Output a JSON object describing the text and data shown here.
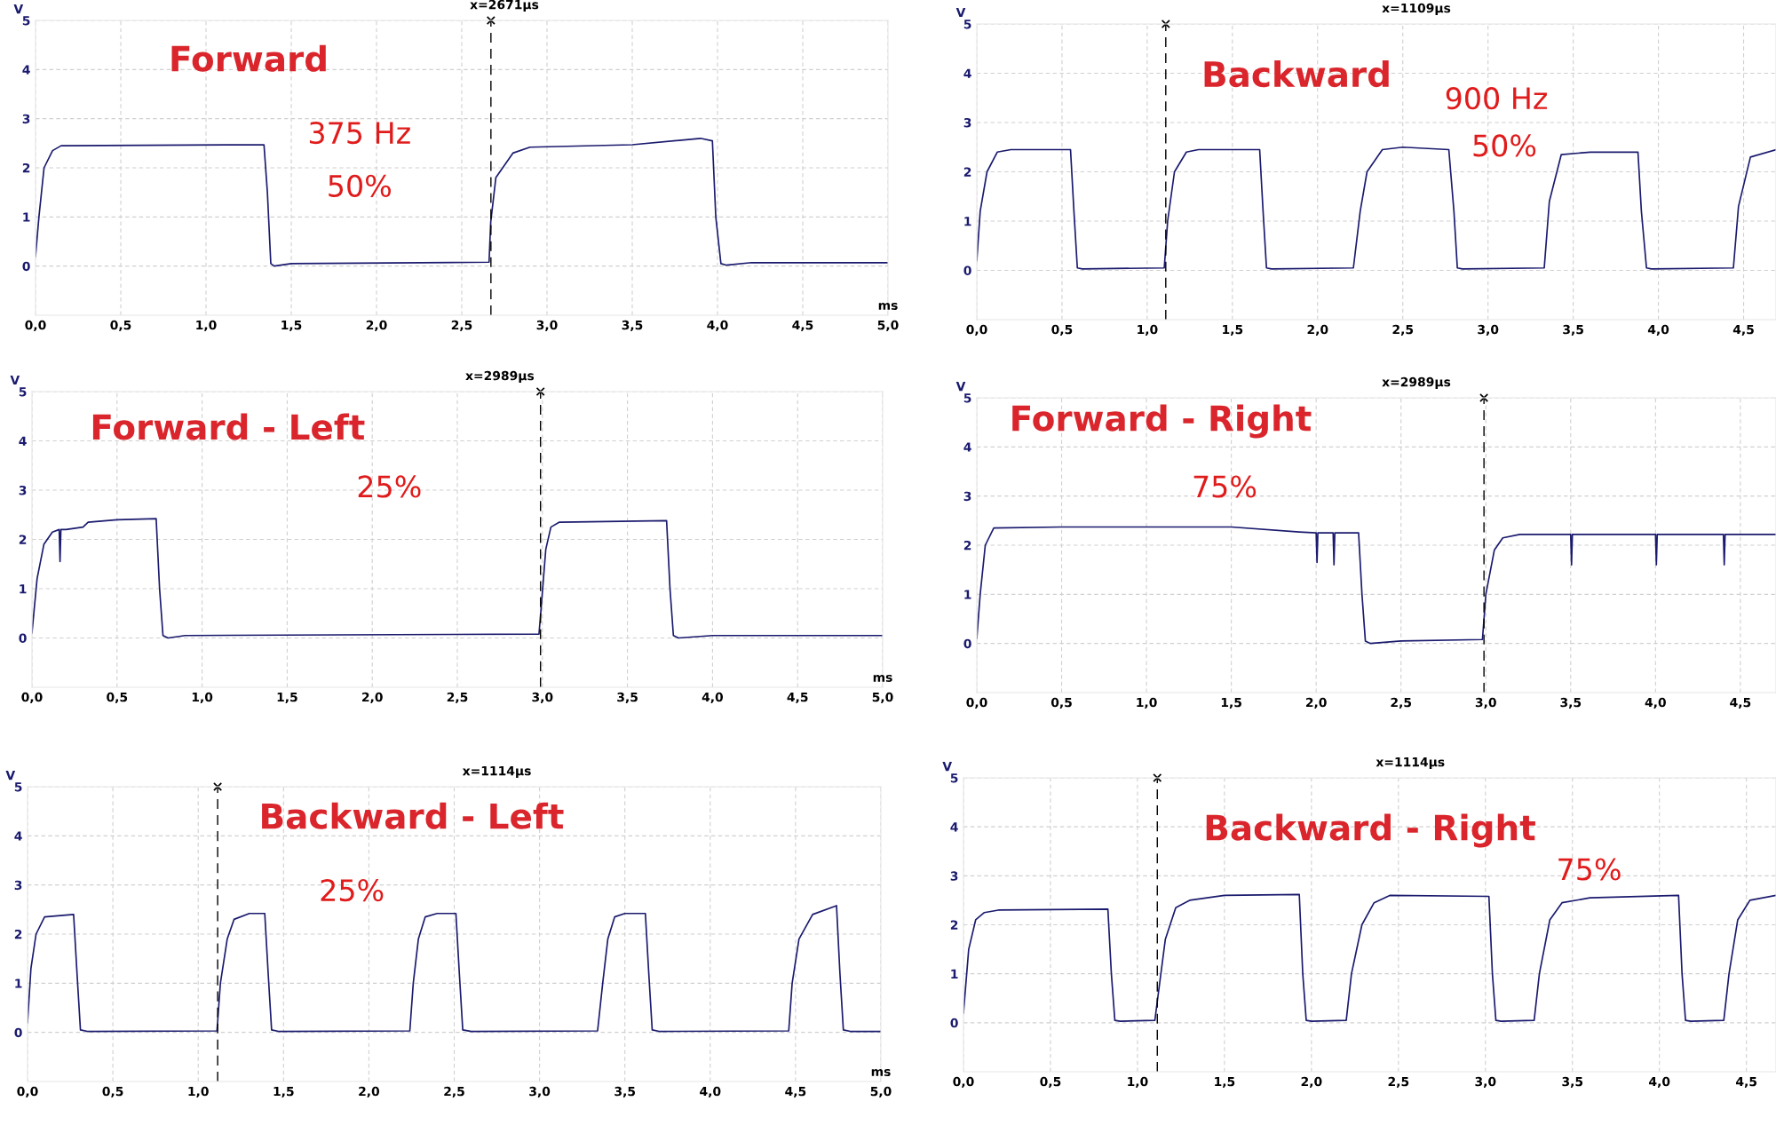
{
  "chart_data": [
    {
      "type": "line",
      "title": "Forward",
      "annotations": [
        "375 Hz",
        "50%"
      ],
      "xlabel": "ms",
      "ylabel": "V",
      "grid": true,
      "xlim": [
        0,
        5
      ],
      "xticks": [
        {
          "value": 0,
          "label": "0,0"
        },
        {
          "value": 0.5,
          "label": "0,5"
        },
        {
          "value": 1,
          "label": "1,0"
        },
        {
          "value": 1.5,
          "label": "1,5"
        },
        {
          "value": 2,
          "label": "2,0"
        },
        {
          "value": 2.5,
          "label": "2,5"
        },
        {
          "value": 3,
          "label": "3,0"
        },
        {
          "value": 3.5,
          "label": "3,5"
        },
        {
          "value": 4,
          "label": "4,0"
        },
        {
          "value": 4.5,
          "label": "4,5"
        },
        {
          "value": 5,
          "label": "5,0"
        }
      ],
      "ylim": [
        -1,
        5
      ],
      "yticks": [
        0,
        1,
        2,
        3,
        4,
        5
      ],
      "ref_lines": [
        {
          "axis": "x",
          "value": 2.671,
          "label": "x=2671µs",
          "line_style": "dashed",
          "color": "#000000"
        }
      ],
      "series": [
        {
          "color": "#1a1a6e",
          "x": [
            0,
            0.02,
            0.05,
            0.1,
            0.15,
            1.34,
            1.36,
            1.38,
            1.4,
            1.5,
            2.66,
            2.67,
            2.7,
            2.8,
            2.9,
            3.5,
            3.9,
            3.97,
            3.99,
            4.02,
            4.05,
            4.2,
            5.0
          ],
          "values": [
            0.2,
            1.0,
            2.0,
            2.35,
            2.45,
            2.47,
            1.5,
            0.05,
            0.0,
            0.05,
            0.08,
            0.9,
            1.8,
            2.3,
            2.42,
            2.47,
            2.6,
            2.55,
            1.0,
            0.05,
            0.02,
            0.07,
            0.07
          ]
        }
      ]
    },
    {
      "type": "line",
      "title": "Backward",
      "annotations": [
        "900 Hz",
        "50%"
      ],
      "ylabel": "V",
      "grid": true,
      "xlim": [
        0,
        4.69
      ],
      "xticks": [
        {
          "value": 0,
          "label": "0,0"
        },
        {
          "value": 0.5,
          "label": "0,5"
        },
        {
          "value": 1,
          "label": "1,0"
        },
        {
          "value": 1.5,
          "label": "1,5"
        },
        {
          "value": 2,
          "label": "2,0"
        },
        {
          "value": 2.5,
          "label": "2,5"
        },
        {
          "value": 3,
          "label": "3,0"
        },
        {
          "value": 3.5,
          "label": "3,5"
        },
        {
          "value": 4,
          "label": "4,0"
        },
        {
          "value": 4.5,
          "label": "4,5"
        }
      ],
      "ylim": [
        -1,
        5
      ],
      "yticks": [
        0,
        1,
        2,
        3,
        4,
        5
      ],
      "ref_lines": [
        {
          "axis": "x",
          "value": 1.109,
          "label": "x=1109µs",
          "line_style": "dashed",
          "color": "#000000"
        }
      ],
      "series": [
        {
          "color": "#1a1a6e",
          "x": [
            0,
            0.02,
            0.06,
            0.12,
            0.2,
            0.55,
            0.57,
            0.59,
            0.62,
            1.1,
            1.12,
            1.16,
            1.23,
            1.3,
            1.66,
            1.68,
            1.7,
            1.73,
            2.21,
            2.25,
            2.29,
            2.38,
            2.5,
            2.77,
            2.8,
            2.82,
            2.85,
            3.33,
            3.36,
            3.43,
            3.6,
            3.88,
            3.9,
            3.93,
            3.96,
            4.44,
            4.47,
            4.54,
            4.69
          ],
          "values": [
            0.2,
            1.2,
            2.0,
            2.4,
            2.45,
            2.45,
            1.2,
            0.05,
            0.03,
            0.05,
            1.0,
            2.0,
            2.4,
            2.45,
            2.45,
            1.2,
            0.05,
            0.03,
            0.05,
            1.2,
            2.0,
            2.45,
            2.5,
            2.45,
            1.2,
            0.05,
            0.03,
            0.05,
            1.4,
            2.35,
            2.4,
            2.4,
            1.2,
            0.05,
            0.03,
            0.05,
            1.3,
            2.3,
            2.45
          ]
        }
      ]
    },
    {
      "type": "line",
      "title": "Forward - Left",
      "annotations": [
        "25%"
      ],
      "xlabel": "ms",
      "ylabel": "V",
      "grid": true,
      "xlim": [
        0,
        5
      ],
      "xticks": [
        {
          "value": 0,
          "label": "0,0"
        },
        {
          "value": 0.5,
          "label": "0,5"
        },
        {
          "value": 1,
          "label": "1,0"
        },
        {
          "value": 1.5,
          "label": "1,5"
        },
        {
          "value": 2,
          "label": "2,0"
        },
        {
          "value": 2.5,
          "label": "2,5"
        },
        {
          "value": 3,
          "label": "3,0"
        },
        {
          "value": 3.5,
          "label": "3,5"
        },
        {
          "value": 4,
          "label": "4,0"
        },
        {
          "value": 4.5,
          "label": "4,5"
        },
        {
          "value": 5,
          "label": "5,0"
        }
      ],
      "ylim": [
        -1,
        5
      ],
      "yticks": [
        0,
        1,
        2,
        3,
        4,
        5
      ],
      "ref_lines": [
        {
          "axis": "x",
          "value": 2.989,
          "label": "x=2989µs",
          "line_style": "dashed",
          "color": "#000000"
        }
      ],
      "series": [
        {
          "color": "#1a1a6e",
          "x": [
            0,
            0.03,
            0.07,
            0.12,
            0.16,
            0.165,
            0.17,
            0.2,
            0.3,
            0.33,
            0.5,
            0.73,
            0.75,
            0.77,
            0.8,
            0.9,
            2.98,
            2.99,
            3.02,
            3.05,
            3.1,
            3.73,
            3.75,
            3.77,
            3.8,
            4.0,
            5.0
          ],
          "values": [
            0.1,
            1.2,
            1.9,
            2.15,
            2.2,
            1.55,
            2.2,
            2.2,
            2.25,
            2.35,
            2.4,
            2.42,
            1.0,
            0.05,
            0.0,
            0.05,
            0.08,
            0.5,
            1.8,
            2.25,
            2.35,
            2.38,
            1.0,
            0.05,
            0.0,
            0.05,
            0.05
          ]
        }
      ]
    },
    {
      "type": "line",
      "title": "Forward - Right",
      "annotations": [
        "75%"
      ],
      "ylabel": "V",
      "grid": true,
      "xlim": [
        0,
        4.71
      ],
      "xticks": [
        {
          "value": 0,
          "label": "0,0"
        },
        {
          "value": 0.5,
          "label": "0,5"
        },
        {
          "value": 1,
          "label": "1,0"
        },
        {
          "value": 1.5,
          "label": "1,5"
        },
        {
          "value": 2,
          "label": "2,0"
        },
        {
          "value": 2.5,
          "label": "2,5"
        },
        {
          "value": 3,
          "label": "3,0"
        },
        {
          "value": 3.5,
          "label": "3,5"
        },
        {
          "value": 4,
          "label": "4,0"
        },
        {
          "value": 4.5,
          "label": "4,5"
        }
      ],
      "ylim": [
        -1,
        5
      ],
      "yticks": [
        0,
        1,
        2,
        3,
        4,
        5
      ],
      "ref_lines": [
        {
          "axis": "x",
          "value": 2.989,
          "label": "x=2989µs",
          "line_style": "dashed",
          "color": "#000000"
        }
      ],
      "series": [
        {
          "color": "#1a1a6e",
          "x": [
            0,
            0.02,
            0.05,
            0.1,
            0.5,
            1.5,
            1.9,
            2.0,
            2.005,
            2.01,
            2.1,
            2.105,
            2.11,
            2.25,
            2.27,
            2.29,
            2.32,
            2.5,
            2.98,
            3.0,
            3.05,
            3.1,
            3.2,
            3.5,
            3.505,
            3.51,
            4.0,
            4.005,
            4.01,
            4.4,
            4.405,
            4.41,
            4.71
          ],
          "values": [
            0.1,
            1.0,
            2.0,
            2.35,
            2.37,
            2.37,
            2.27,
            2.25,
            1.65,
            2.25,
            2.25,
            1.6,
            2.25,
            2.25,
            1.0,
            0.05,
            0.0,
            0.05,
            0.08,
            1.0,
            1.9,
            2.15,
            2.22,
            2.22,
            1.6,
            2.22,
            2.22,
            1.6,
            2.22,
            2.22,
            1.6,
            2.22,
            2.22
          ]
        }
      ]
    },
    {
      "type": "line",
      "title": "Backward - Left",
      "annotations": [
        "25%"
      ],
      "xlabel": "ms",
      "ylabel": "V",
      "grid": true,
      "xlim": [
        0,
        5
      ],
      "xticks": [
        {
          "value": 0,
          "label": "0,0"
        },
        {
          "value": 0.5,
          "label": "0,5"
        },
        {
          "value": 1,
          "label": "1,0"
        },
        {
          "value": 1.5,
          "label": "1,5"
        },
        {
          "value": 2,
          "label": "2,0"
        },
        {
          "value": 2.5,
          "label": "2,5"
        },
        {
          "value": 3,
          "label": "3,0"
        },
        {
          "value": 3.5,
          "label": "3,5"
        },
        {
          "value": 4,
          "label": "4,0"
        },
        {
          "value": 4.5,
          "label": "4,5"
        },
        {
          "value": 5,
          "label": "5,0"
        }
      ],
      "ylim": [
        -1,
        5
      ],
      "yticks": [
        0,
        1,
        2,
        3,
        4,
        5
      ],
      "ref_lines": [
        {
          "axis": "x",
          "value": 1.114,
          "label": "x=1114µs",
          "line_style": "dashed",
          "color": "#000000"
        }
      ],
      "series": [
        {
          "color": "#1a1a6e",
          "x": [
            0,
            0.02,
            0.05,
            0.1,
            0.27,
            0.29,
            0.31,
            0.35,
            1.11,
            1.13,
            1.17,
            1.21,
            1.3,
            1.39,
            1.41,
            1.43,
            1.47,
            2.24,
            2.26,
            2.29,
            2.33,
            2.4,
            2.51,
            2.53,
            2.55,
            2.6,
            3.34,
            3.37,
            3.4,
            3.44,
            3.5,
            3.62,
            3.64,
            3.66,
            3.7,
            4.46,
            4.48,
            4.52,
            4.6,
            4.74,
            4.76,
            4.78,
            4.82,
            5.0
          ],
          "values": [
            0.2,
            1.3,
            2.0,
            2.35,
            2.4,
            1.2,
            0.05,
            0.02,
            0.03,
            1.0,
            1.9,
            2.3,
            2.42,
            2.42,
            1.2,
            0.05,
            0.02,
            0.03,
            1.0,
            1.9,
            2.35,
            2.42,
            2.42,
            1.2,
            0.05,
            0.02,
            0.03,
            1.0,
            1.9,
            2.35,
            2.42,
            2.42,
            1.2,
            0.05,
            0.02,
            0.03,
            1.0,
            1.9,
            2.4,
            2.58,
            1.2,
            0.05,
            0.02,
            0.02
          ]
        }
      ]
    },
    {
      "type": "line",
      "title": "Backward - Right",
      "annotations": [
        "75%"
      ],
      "ylabel": "V",
      "grid": true,
      "xlim": [
        0,
        4.67
      ],
      "xticks": [
        {
          "value": 0,
          "label": "0,0"
        },
        {
          "value": 0.5,
          "label": "0,5"
        },
        {
          "value": 1,
          "label": "1,0"
        },
        {
          "value": 1.5,
          "label": "1,5"
        },
        {
          "value": 2,
          "label": "2,0"
        },
        {
          "value": 2.5,
          "label": "2,5"
        },
        {
          "value": 3,
          "label": "3,0"
        },
        {
          "value": 3.5,
          "label": "3,5"
        },
        {
          "value": 4,
          "label": "4,0"
        },
        {
          "value": 4.5,
          "label": "4,5"
        }
      ],
      "ylim": [
        -1,
        5
      ],
      "yticks": [
        0,
        1,
        2,
        3,
        4,
        5
      ],
      "ref_lines": [
        {
          "axis": "x",
          "value": 1.114,
          "label": "x=1114µs",
          "line_style": "dashed",
          "color": "#000000"
        }
      ],
      "series": [
        {
          "color": "#1a1a6e",
          "x": [
            0,
            0.03,
            0.07,
            0.12,
            0.2,
            0.83,
            0.85,
            0.87,
            0.9,
            1.1,
            1.12,
            1.16,
            1.22,
            1.3,
            1.5,
            1.93,
            1.95,
            1.97,
            2.0,
            2.2,
            2.23,
            2.29,
            2.36,
            2.45,
            3.02,
            3.04,
            3.06,
            3.09,
            3.28,
            3.31,
            3.37,
            3.44,
            3.6,
            4.11,
            4.13,
            4.15,
            4.18,
            4.37,
            4.4,
            4.45,
            4.52,
            4.67
          ],
          "values": [
            0.2,
            1.5,
            2.1,
            2.25,
            2.3,
            2.32,
            1.0,
            0.05,
            0.03,
            0.05,
            0.6,
            1.7,
            2.35,
            2.5,
            2.6,
            2.62,
            1.0,
            0.05,
            0.03,
            0.05,
            1.0,
            2.0,
            2.45,
            2.6,
            2.58,
            1.0,
            0.05,
            0.03,
            0.05,
            1.0,
            2.1,
            2.45,
            2.55,
            2.6,
            1.0,
            0.05,
            0.03,
            0.05,
            1.0,
            2.1,
            2.5,
            2.6
          ]
        }
      ]
    }
  ]
}
